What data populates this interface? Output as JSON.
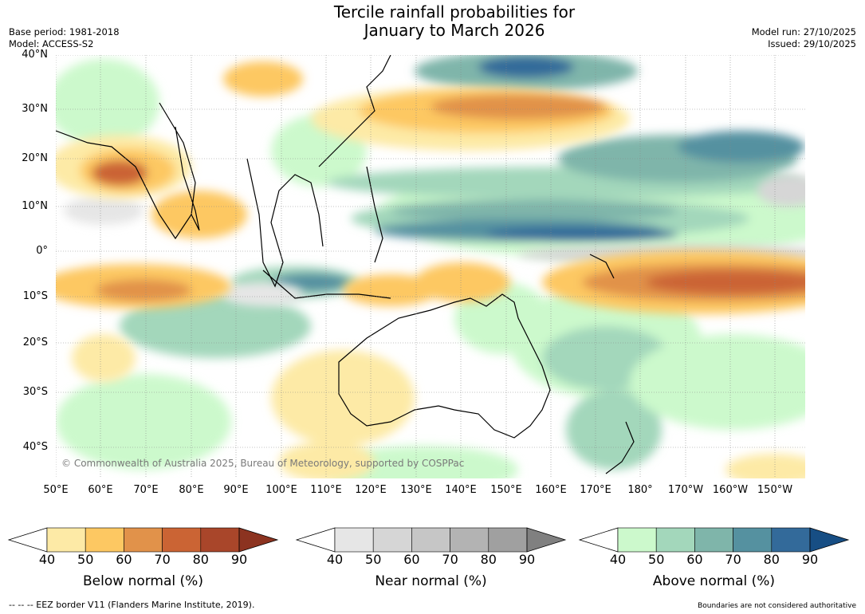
{
  "title": {
    "line1": "Tercile rainfall probabilities for",
    "line2": "January to March 2026"
  },
  "meta": {
    "base_period": "Base period: 1981-2018",
    "model": "Model: ACCESS-S2",
    "model_run": "Model run: 27/10/2025",
    "issued": "Issued: 29/10/2025"
  },
  "map": {
    "lat_labels": [
      "40°N",
      "30°N",
      "20°N",
      "10°N",
      "0°",
      "10°S",
      "20°S",
      "30°S",
      "40°S"
    ],
    "lon_labels": [
      "50°E",
      "60°E",
      "70°E",
      "80°E",
      "90°E",
      "100°E",
      "110°E",
      "120°E",
      "130°E",
      "140°E",
      "150°E",
      "160°E",
      "170°E",
      "180°",
      "170°W",
      "160°W",
      "150°W"
    ],
    "copyright": "© Commonwealth of Australia 2025, Bureau of Meteorology, supported by COSPPac"
  },
  "colorbars": [
    {
      "label": "Below normal (%)",
      "ticks": [
        "40",
        "50",
        "60",
        "70",
        "80",
        "90"
      ],
      "colors": [
        "#fdeaa6",
        "#fdc862",
        "#e1924a",
        "#cb6434",
        "#a9462a"
      ],
      "extend_color": "#8c3320"
    },
    {
      "label": "Near normal (%)",
      "ticks": [
        "40",
        "50",
        "60",
        "70",
        "80",
        "90"
      ],
      "colors": [
        "#e6e6e6",
        "#d6d6d6",
        "#c6c6c6",
        "#b3b3b3",
        "#a0a0a0"
      ],
      "extend_color": "#808080"
    },
    {
      "label": "Above normal (%)",
      "ticks": [
        "40",
        "50",
        "60",
        "70",
        "80",
        "90"
      ],
      "colors": [
        "#ccf9cc",
        "#a3d7bb",
        "#7fb5aa",
        "#5591a0",
        "#336a9a"
      ],
      "extend_color": "#174e84"
    }
  ],
  "footer": {
    "eez_note": "--  --  -- EEZ border V11 (Flanders Marine Institute, 2019).",
    "disclaimer": "Boundaries are not considered authoritative"
  }
}
